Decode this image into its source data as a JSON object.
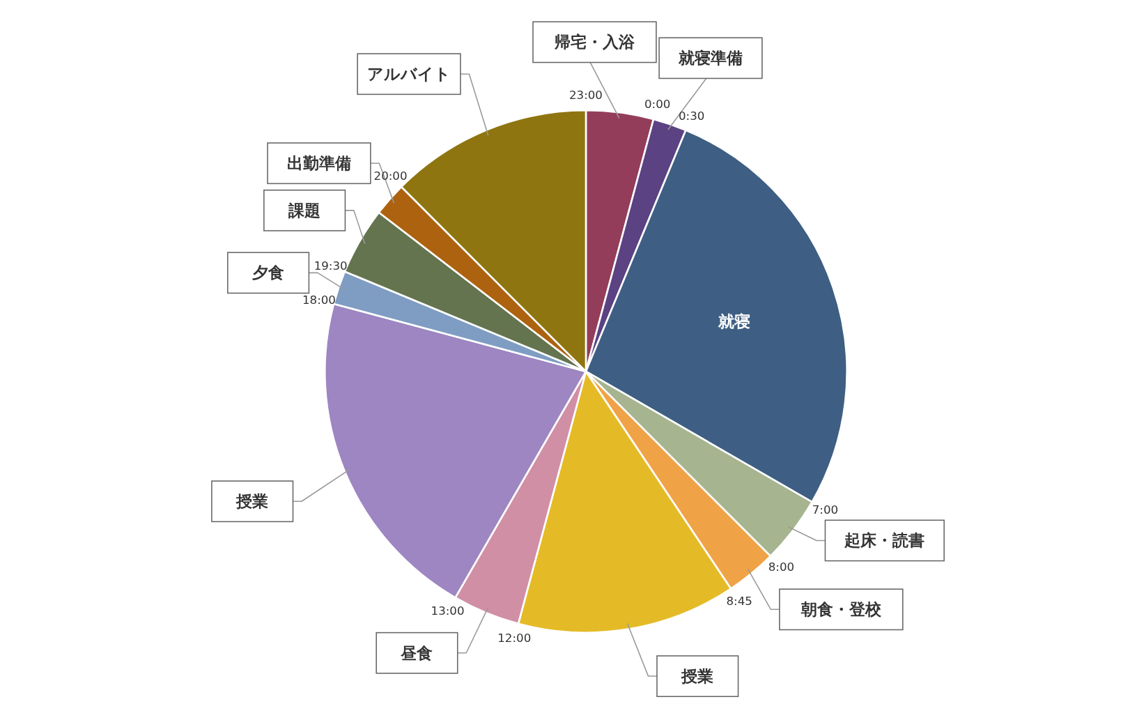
{
  "chart_data": {
    "type": "pie",
    "categories": [
      "帰宅・入浴",
      "就寝準備",
      "就寝",
      "起床・読書",
      "朝食・登校",
      "授業",
      "昼食",
      "授業",
      "夕食",
      "課題",
      "出勤準備",
      "アルバイト"
    ],
    "values": [
      4.17,
      2.08,
      27.08,
      4.17,
      3.13,
      13.54,
      4.17,
      20.83,
      2.08,
      4.17,
      2.08,
      12.5
    ],
    "colors": [
      "#943d5a",
      "#5b4283",
      "#3e5f83",
      "#a6b490",
      "#f0a346",
      "#e4bb27",
      "#d08fa5",
      "#9d86c1",
      "#7f9dc3",
      "#63744f",
      "#ad620f",
      "#8e7510"
    ],
    "annotations": [
      "23:00",
      "0:00",
      "0:30",
      "7:00",
      "8:00",
      "8:45",
      "12:00",
      "13:00",
      "18:00",
      "19:30",
      "20:00"
    ]
  }
}
